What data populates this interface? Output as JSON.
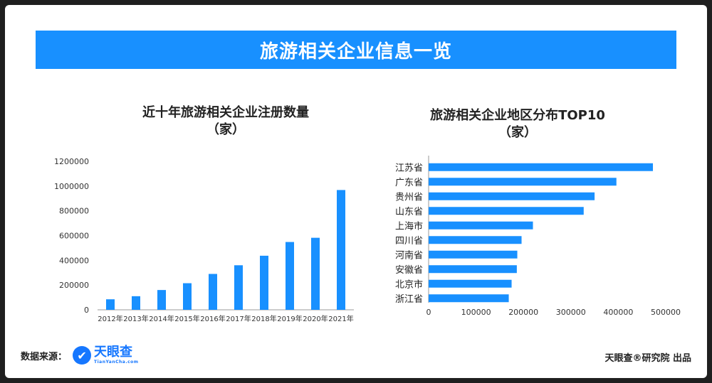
{
  "header": {
    "title": "旅游相关企业信息一览"
  },
  "colors": {
    "accent": "#1890ff",
    "bar": "#1890ff"
  },
  "footer": {
    "source_label": "数据来源：",
    "logo_name": "天眼查",
    "logo_sub": "TianYanCha.com",
    "credit": "天眼查®研究院 出品"
  },
  "chart_data": [
    {
      "type": "bar",
      "title": "近十年旅游相关企业注册数量",
      "subtitle": "（家）",
      "categories": [
        "2012年",
        "2013年",
        "2014年",
        "2015年",
        "2016年",
        "2017年",
        "2018年",
        "2019年",
        "2020年",
        "2021年"
      ],
      "values": [
        85000,
        110000,
        160000,
        215000,
        290000,
        360000,
        437000,
        548000,
        582000,
        968000
      ],
      "ylim": [
        0,
        1200000
      ],
      "yticks": [
        "0",
        "200000",
        "400000",
        "600000",
        "800000",
        "1000000",
        "1200000"
      ],
      "grid": false
    },
    {
      "type": "bar",
      "orientation": "horizontal",
      "title": "旅游相关企业地区分布TOP10",
      "subtitle": "（家）",
      "categories": [
        "江苏省",
        "广东省",
        "贵州省",
        "山东省",
        "上海市",
        "四川省",
        "河南省",
        "安徽省",
        "北京市",
        "浙江省"
      ],
      "values": [
        473000,
        396000,
        350000,
        327000,
        220000,
        196000,
        187000,
        186000,
        175000,
        169000
      ],
      "xlim": [
        0,
        500000
      ],
      "xticks": [
        "0",
        "100000",
        "200000",
        "300000",
        "400000",
        "500000"
      ],
      "grid": false
    }
  ]
}
